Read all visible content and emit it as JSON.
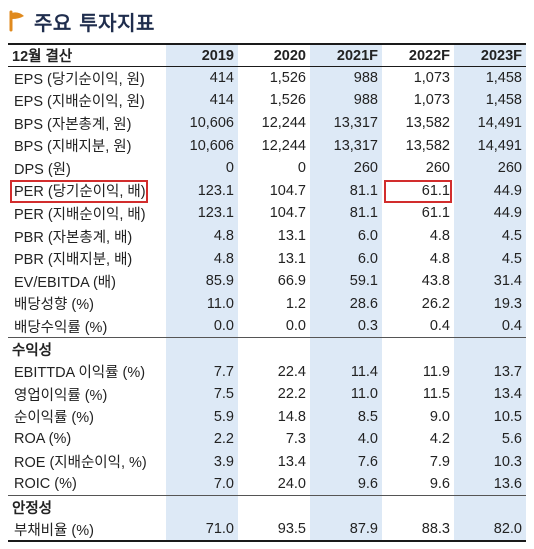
{
  "title": "주요 투자지표",
  "table": {
    "header_label": "12월 결산",
    "years": [
      "2019",
      "2020",
      "2021F",
      "2022F",
      "2023F"
    ],
    "sections": [
      {
        "name": "",
        "rows": [
          {
            "label": "EPS (당기순이익, 원)",
            "values": [
              "414",
              "1,526",
              "988",
              "1,073",
              "1,458"
            ]
          },
          {
            "label": "EPS (지배순이익, 원)",
            "values": [
              "414",
              "1,526",
              "988",
              "1,073",
              "1,458"
            ]
          },
          {
            "label": "BPS (자본총계, 원)",
            "values": [
              "10,606",
              "12,244",
              "13,317",
              "13,582",
              "14,491"
            ]
          },
          {
            "label": "BPS (지배지분, 원)",
            "values": [
              "10,606",
              "12,244",
              "13,317",
              "13,582",
              "14,491"
            ]
          },
          {
            "label": "DPS (원)",
            "values": [
              "0",
              "0",
              "260",
              "260",
              "260"
            ]
          },
          {
            "label": "PER (당기순이익, 배)",
            "values": [
              "123.1",
              "104.7",
              "81.1",
              "61.1",
              "44.9"
            ]
          },
          {
            "label": "PER (지배순이익, 배)",
            "values": [
              "123.1",
              "104.7",
              "81.1",
              "61.1",
              "44.9"
            ]
          },
          {
            "label": "PBR (자본총계, 배)",
            "values": [
              "4.8",
              "13.1",
              "6.0",
              "4.8",
              "4.5"
            ]
          },
          {
            "label": "PBR (지배지분, 배)",
            "values": [
              "4.8",
              "13.1",
              "6.0",
              "4.8",
              "4.5"
            ]
          },
          {
            "label": "EV/EBITDA (배)",
            "values": [
              "85.9",
              "66.9",
              "59.1",
              "43.8",
              "31.4"
            ]
          },
          {
            "label": "배당성향 (%)",
            "values": [
              "11.0",
              "1.2",
              "28.6",
              "26.2",
              "19.3"
            ]
          },
          {
            "label": "배당수익률 (%)",
            "values": [
              "0.0",
              "0.0",
              "0.3",
              "0.4",
              "0.4"
            ]
          }
        ]
      },
      {
        "name": "수익성",
        "rows": [
          {
            "label": "EBITTDA 이익률 (%)",
            "values": [
              "7.7",
              "22.4",
              "11.4",
              "11.9",
              "13.7"
            ]
          },
          {
            "label": "영업이익률 (%)",
            "values": [
              "7.5",
              "22.2",
              "11.0",
              "11.5",
              "13.4"
            ]
          },
          {
            "label": "순이익률 (%)",
            "values": [
              "5.9",
              "14.8",
              "8.5",
              "9.0",
              "10.5"
            ]
          },
          {
            "label": "ROA (%)",
            "values": [
              "2.2",
              "7.3",
              "4.0",
              "4.2",
              "5.6"
            ]
          },
          {
            "label": "ROE (지배순이익, %)",
            "values": [
              "3.9",
              "13.4",
              "7.6",
              "7.9",
              "10.3"
            ]
          },
          {
            "label": "ROIC (%)",
            "values": [
              "7.0",
              "24.0",
              "9.6",
              "9.6",
              "13.6"
            ]
          }
        ]
      },
      {
        "name": "안정성",
        "rows": [
          {
            "label": "부채비율 (%)",
            "values": [
              "71.0",
              "93.5",
              "87.9",
              "88.3",
              "82.0"
            ]
          }
        ]
      }
    ],
    "highlight_columns": [
      "2019",
      "2021F",
      "2023F"
    ],
    "highlight_color": "#dde9f6",
    "annotation_color": "#d22d2d"
  }
}
